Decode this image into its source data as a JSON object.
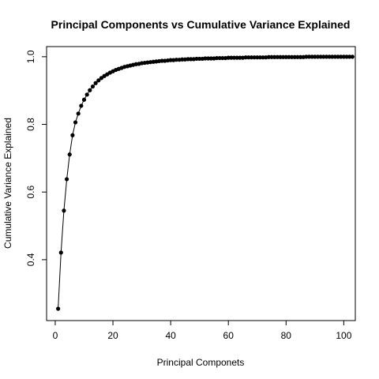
{
  "chart_data": {
    "type": "line",
    "title": "Principal Components vs Cumulative Variance Explained",
    "xlabel": "Principal Componets",
    "ylabel": "Cumulative Variance Explained",
    "xlim": [
      -3,
      104
    ],
    "ylim": [
      0.22,
      1.03
    ],
    "x_ticks": [
      0,
      20,
      40,
      60,
      80,
      100
    ],
    "y_ticks": [
      0.4,
      0.6,
      0.8,
      1.0
    ],
    "x_tick_labels": [
      "0",
      "20",
      "40",
      "60",
      "80",
      "100"
    ],
    "y_tick_labels": [
      "0.4",
      "0.6",
      "0.8",
      "1.0"
    ],
    "grid": false,
    "legend": "none",
    "line_color": "#000000",
    "marker": "filled-circle",
    "series": [
      {
        "x": [
          1,
          2,
          3,
          4,
          5,
          6,
          7,
          8,
          9,
          10,
          11,
          12,
          13,
          14,
          15,
          16,
          17,
          18,
          19,
          20,
          21,
          22,
          23,
          24,
          25,
          26,
          27,
          28,
          29,
          30,
          31,
          32,
          33,
          34,
          35,
          36,
          37,
          38,
          39,
          40,
          41,
          42,
          43,
          44,
          45,
          46,
          47,
          48,
          49,
          50,
          51,
          52,
          53,
          54,
          55,
          56,
          57,
          58,
          59,
          60,
          61,
          62,
          63,
          64,
          65,
          66,
          67,
          68,
          69,
          70,
          71,
          72,
          73,
          74,
          75,
          76,
          77,
          78,
          79,
          80,
          81,
          82,
          83,
          84,
          85,
          86,
          87,
          88,
          89,
          90,
          91,
          92,
          93,
          94,
          95,
          96,
          97,
          98,
          99,
          100,
          101,
          102,
          103
        ],
        "y": [
          0.255,
          0.421,
          0.545,
          0.638,
          0.711,
          0.768,
          0.806,
          0.832,
          0.855,
          0.873,
          0.888,
          0.901,
          0.912,
          0.922,
          0.93,
          0.937,
          0.943,
          0.948,
          0.953,
          0.957,
          0.961,
          0.964,
          0.967,
          0.97,
          0.972,
          0.974,
          0.976,
          0.978,
          0.979,
          0.981,
          0.982,
          0.983,
          0.984,
          0.985,
          0.986,
          0.987,
          0.988,
          0.988,
          0.989,
          0.99,
          0.99,
          0.991,
          0.991,
          0.992,
          0.992,
          0.993,
          0.993,
          0.993,
          0.994,
          0.994,
          0.994,
          0.995,
          0.995,
          0.995,
          0.995,
          0.996,
          0.996,
          0.996,
          0.996,
          0.997,
          0.997,
          0.997,
          0.997,
          0.997,
          0.997,
          0.998,
          0.998,
          0.998,
          0.998,
          0.998,
          0.998,
          0.998,
          0.998,
          0.999,
          0.999,
          0.999,
          0.999,
          0.999,
          0.999,
          0.999,
          0.999,
          0.999,
          0.999,
          0.999,
          0.999,
          0.999,
          1.0,
          1.0,
          1.0,
          1.0,
          1.0,
          1.0,
          1.0,
          1.0,
          1.0,
          1.0,
          1.0,
          1.0,
          1.0,
          1.0,
          1.0,
          1.0,
          1.0
        ]
      }
    ]
  }
}
